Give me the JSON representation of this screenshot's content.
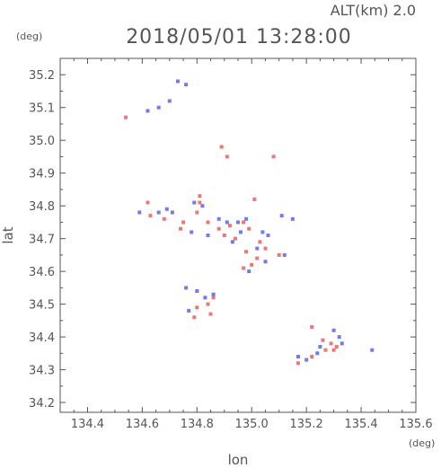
{
  "chart_data": {
    "type": "scatter",
    "title": "2018/05/01 13:28:00",
    "subtitle": "ALT(km) 2.0",
    "xlabel": "lon",
    "ylabel": "lat",
    "x_unit": "(deg)",
    "y_unit": "(deg)",
    "xlim": [
      134.3,
      135.6
    ],
    "ylim": [
      34.17,
      35.25
    ],
    "xticks": [
      "134.4",
      "134.6",
      "134.8",
      "135.0",
      "135.2",
      "135.4",
      "135.6"
    ],
    "yticks": [
      "34.2",
      "34.3",
      "34.4",
      "34.5",
      "34.6",
      "34.7",
      "34.8",
      "34.9",
      "35.0",
      "35.1",
      "35.2"
    ],
    "grid": false,
    "colors": {
      "positive": "#e8605a",
      "negative": "#5b63e8",
      "axis": "#555555"
    },
    "series": [
      {
        "values": [
          [
            134.54,
            35.07
          ],
          [
            134.62,
            34.81
          ],
          [
            134.91,
            34.95
          ],
          [
            135.08,
            34.95
          ],
          [
            135.01,
            34.82
          ],
          [
            134.63,
            34.77
          ],
          [
            134.68,
            34.76
          ],
          [
            134.75,
            34.75
          ],
          [
            134.81,
            34.81
          ],
          [
            134.8,
            34.78
          ],
          [
            134.84,
            34.75
          ],
          [
            134.88,
            34.73
          ],
          [
            134.9,
            34.71
          ],
          [
            134.92,
            34.74
          ],
          [
            134.97,
            34.75
          ],
          [
            135.03,
            34.69
          ],
          [
            135.05,
            34.67
          ],
          [
            134.98,
            34.66
          ],
          [
            135.0,
            34.62
          ],
          [
            134.97,
            34.61
          ],
          [
            135.1,
            34.65
          ],
          [
            134.86,
            34.52
          ],
          [
            134.8,
            34.49
          ],
          [
            134.79,
            34.46
          ],
          [
            134.84,
            34.5
          ],
          [
            135.26,
            34.39
          ],
          [
            135.29,
            34.38
          ],
          [
            135.31,
            34.37
          ],
          [
            135.22,
            34.34
          ],
          [
            135.27,
            34.36
          ],
          [
            135.22,
            34.43
          ],
          [
            135.17,
            34.32
          ],
          [
            134.89,
            34.98
          ],
          [
            134.81,
            34.83
          ],
          [
            134.94,
            34.7
          ],
          [
            134.99,
            34.73
          ],
          [
            135.02,
            34.64
          ],
          [
            134.85,
            34.47
          ],
          [
            135.3,
            34.36
          ],
          [
            134.74,
            34.73
          ]
        ]
      },
      {
        "values": [
          [
            134.62,
            35.09
          ],
          [
            134.66,
            35.1
          ],
          [
            134.7,
            35.12
          ],
          [
            134.73,
            35.18
          ],
          [
            134.76,
            35.17
          ],
          [
            134.59,
            34.78
          ],
          [
            134.66,
            34.78
          ],
          [
            134.71,
            34.78
          ],
          [
            134.78,
            34.72
          ],
          [
            134.82,
            34.8
          ],
          [
            134.84,
            34.71
          ],
          [
            134.88,
            34.76
          ],
          [
            134.91,
            34.75
          ],
          [
            134.96,
            34.72
          ],
          [
            134.98,
            34.76
          ],
          [
            135.02,
            34.67
          ],
          [
            135.06,
            34.71
          ],
          [
            134.93,
            34.69
          ],
          [
            134.99,
            34.6
          ],
          [
            135.05,
            34.63
          ],
          [
            134.83,
            34.52
          ],
          [
            134.76,
            34.55
          ],
          [
            134.8,
            34.54
          ],
          [
            134.86,
            34.53
          ],
          [
            134.77,
            34.48
          ],
          [
            135.3,
            34.42
          ],
          [
            135.33,
            34.38
          ],
          [
            135.25,
            34.37
          ],
          [
            135.2,
            34.33
          ],
          [
            135.24,
            34.35
          ],
          [
            135.44,
            34.36
          ],
          [
            135.17,
            34.34
          ],
          [
            135.11,
            34.77
          ],
          [
            135.12,
            34.65
          ],
          [
            134.95,
            34.75
          ],
          [
            135.04,
            34.72
          ],
          [
            134.69,
            34.79
          ],
          [
            135.32,
            34.4
          ],
          [
            134.79,
            34.81
          ],
          [
            135.15,
            34.76
          ]
        ]
      }
    ]
  }
}
